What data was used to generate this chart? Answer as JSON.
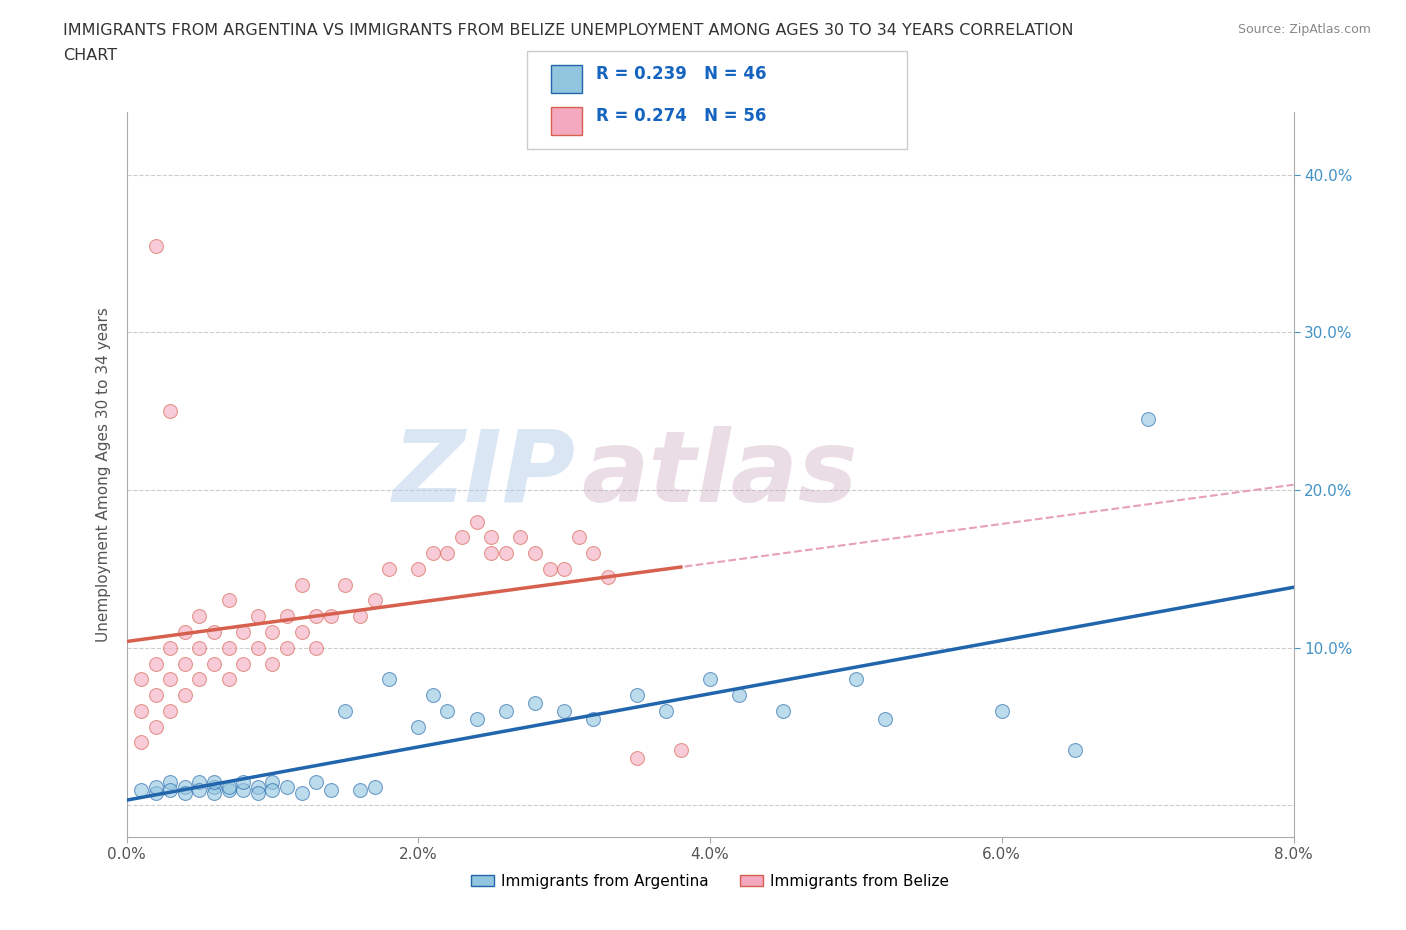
{
  "title_line1": "IMMIGRANTS FROM ARGENTINA VS IMMIGRANTS FROM BELIZE UNEMPLOYMENT AMONG AGES 30 TO 34 YEARS CORRELATION",
  "title_line2": "CHART",
  "source": "Source: ZipAtlas.com",
  "ylabel": "Unemployment Among Ages 30 to 34 years",
  "legend_label1": "Immigrants from Argentina",
  "legend_label2": "Immigrants from Belize",
  "R1": 0.239,
  "N1": 46,
  "R2": 0.274,
  "N2": 56,
  "color_argentina": "#92c5de",
  "color_belize": "#f4a9c0",
  "color_argentina_line": "#2166ac",
  "color_belize_line": "#d6604d",
  "color_belize_dashed": "#f4a9c0",
  "watermark_zip": "ZIP",
  "watermark_atlas": "atlas",
  "xlim": [
    0.0,
    0.08
  ],
  "ylim": [
    -0.02,
    0.44
  ],
  "xticks": [
    0.0,
    0.02,
    0.04,
    0.06,
    0.08
  ],
  "xtick_labels": [
    "0.0%",
    "2.0%",
    "4.0%",
    "6.0%",
    "8.0%"
  ],
  "yticks_right": [
    0.1,
    0.2,
    0.3,
    0.4
  ],
  "ytick_labels_right": [
    "10.0%",
    "20.0%",
    "30.0%",
    "40.0%"
  ],
  "argentina_x": [
    0.001,
    0.002,
    0.002,
    0.003,
    0.003,
    0.004,
    0.004,
    0.005,
    0.005,
    0.006,
    0.006,
    0.006,
    0.007,
    0.007,
    0.008,
    0.008,
    0.009,
    0.009,
    0.01,
    0.01,
    0.011,
    0.012,
    0.013,
    0.014,
    0.015,
    0.016,
    0.017,
    0.018,
    0.02,
    0.021,
    0.022,
    0.024,
    0.026,
    0.028,
    0.03,
    0.032,
    0.035,
    0.037,
    0.04,
    0.042,
    0.045,
    0.05,
    0.052,
    0.06,
    0.065,
    0.07
  ],
  "argentina_y": [
    0.01,
    0.008,
    0.012,
    0.015,
    0.01,
    0.012,
    0.008,
    0.015,
    0.01,
    0.012,
    0.008,
    0.015,
    0.01,
    0.012,
    0.01,
    0.015,
    0.012,
    0.008,
    0.015,
    0.01,
    0.012,
    0.008,
    0.015,
    0.01,
    0.06,
    0.01,
    0.012,
    0.08,
    0.05,
    0.07,
    0.06,
    0.055,
    0.06,
    0.065,
    0.06,
    0.055,
    0.07,
    0.06,
    0.08,
    0.07,
    0.06,
    0.08,
    0.055,
    0.06,
    0.035,
    0.245
  ],
  "belize_x": [
    0.001,
    0.001,
    0.001,
    0.002,
    0.002,
    0.002,
    0.003,
    0.003,
    0.003,
    0.004,
    0.004,
    0.004,
    0.005,
    0.005,
    0.005,
    0.006,
    0.006,
    0.007,
    0.007,
    0.007,
    0.008,
    0.008,
    0.009,
    0.009,
    0.01,
    0.01,
    0.011,
    0.011,
    0.012,
    0.012,
    0.013,
    0.013,
    0.014,
    0.015,
    0.016,
    0.017,
    0.018,
    0.02,
    0.021,
    0.022,
    0.023,
    0.024,
    0.025,
    0.025,
    0.026,
    0.027,
    0.028,
    0.029,
    0.03,
    0.031,
    0.032,
    0.033,
    0.035,
    0.038,
    0.003,
    0.002
  ],
  "belize_y": [
    0.04,
    0.06,
    0.08,
    0.05,
    0.07,
    0.09,
    0.06,
    0.08,
    0.1,
    0.07,
    0.09,
    0.11,
    0.08,
    0.1,
    0.12,
    0.09,
    0.11,
    0.08,
    0.1,
    0.13,
    0.09,
    0.11,
    0.1,
    0.12,
    0.11,
    0.09,
    0.1,
    0.12,
    0.11,
    0.14,
    0.12,
    0.1,
    0.12,
    0.14,
    0.12,
    0.13,
    0.15,
    0.15,
    0.16,
    0.16,
    0.17,
    0.18,
    0.17,
    0.16,
    0.16,
    0.17,
    0.16,
    0.15,
    0.15,
    0.17,
    0.16,
    0.145,
    0.03,
    0.035,
    0.25,
    0.355
  ]
}
